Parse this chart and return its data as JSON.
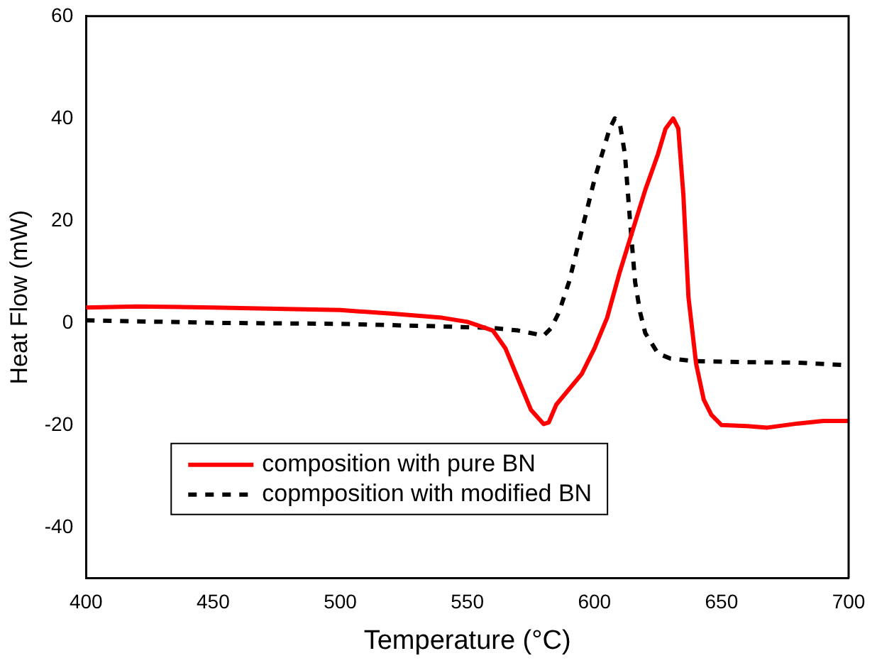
{
  "chart_data": {
    "type": "line",
    "xlabel": "Temperature (°C)",
    "ylabel": "Heat Flow (mW)",
    "xlim": [
      400,
      700
    ],
    "xticks": [
      400,
      450,
      500,
      550,
      600,
      650,
      700
    ],
    "ylim": [
      -50,
      60
    ],
    "yticks": [
      -40,
      -20,
      0,
      20,
      40,
      60
    ],
    "grid": false,
    "legend": "bottom left",
    "marker": "none",
    "series": [
      {
        "name": "composition with pure BN",
        "color": "#ff0000",
        "line_style": "solid",
        "x": [
          400,
          420,
          450,
          500,
          520,
          540,
          550,
          560,
          565,
          570,
          575,
          580,
          582,
          585,
          590,
          595,
          600,
          605,
          610,
          615,
          620,
          625,
          628,
          631,
          633,
          635,
          637,
          640,
          643,
          646,
          650,
          660,
          668,
          680,
          690,
          700
        ],
        "values": [
          3,
          3.2,
          3,
          2.5,
          1.8,
          1,
          0.2,
          -1.5,
          -5,
          -11,
          -17,
          -19.8,
          -19.5,
          -16,
          -13,
          -10,
          -5,
          1,
          10,
          18,
          26,
          33,
          38,
          40,
          38,
          25,
          5,
          -8,
          -15,
          -18,
          -20,
          -20.2,
          -20.5,
          -19.7,
          -19.2,
          -19.2
        ]
      },
      {
        "name": "copmposition with modified BN",
        "color": "#000000",
        "line_style": "dashed",
        "x": [
          400,
          450,
          500,
          540,
          560,
          570,
          580,
          583,
          586,
          590,
          595,
          600,
          603,
          606,
          608,
          610,
          612,
          614,
          616,
          618,
          620,
          625,
          630,
          640,
          660,
          680,
          700
        ],
        "values": [
          0.5,
          0,
          -0.2,
          -0.7,
          -1,
          -1.5,
          -2.5,
          -1,
          2,
          8,
          18,
          28,
          33,
          38,
          40,
          39,
          33,
          20,
          8,
          2,
          -2,
          -6,
          -7,
          -7.5,
          -7.7,
          -7.8,
          -8.3
        ]
      }
    ]
  }
}
